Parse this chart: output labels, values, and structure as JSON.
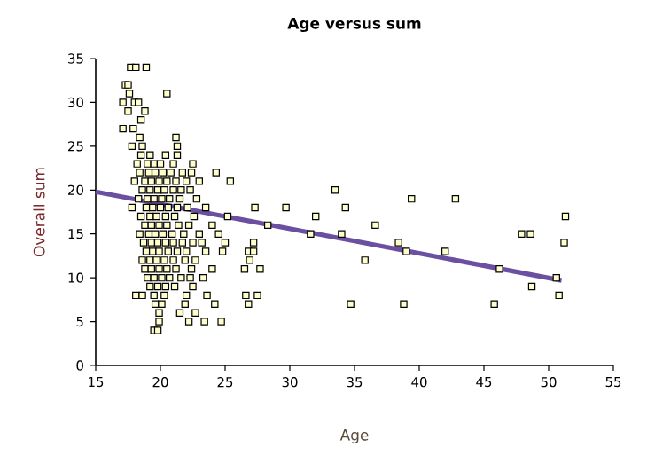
{
  "chart_data": {
    "type": "scatter",
    "title": "Age versus sum",
    "xlabel": "Age",
    "ylabel": "Overall sum",
    "xlim": [
      15,
      55
    ],
    "ylim": [
      0,
      35
    ],
    "xticks": [
      15,
      20,
      25,
      30,
      35,
      40,
      45,
      50,
      55
    ],
    "yticks": [
      0,
      5,
      10,
      15,
      20,
      25,
      30,
      35
    ],
    "marker": "square",
    "series": [
      {
        "type": "scatter",
        "color": "#ffffcc",
        "x": [
          17.7,
          18.1,
          18.9,
          17.3,
          17.5,
          17.6,
          20.5,
          17.1,
          18.0,
          18.3,
          17.5,
          18.8,
          18.5,
          17.1,
          17.9,
          18.4,
          21.2,
          17.8,
          18.6,
          21.3,
          18.5,
          19.2,
          20.4,
          21.3,
          18.2,
          19.0,
          19.5,
          20.0,
          21.0,
          22.5,
          18.4,
          19.1,
          19.6,
          20.2,
          20.8,
          21.7,
          22.4,
          24.3,
          18.0,
          18.8,
          19.3,
          19.9,
          20.5,
          21.2,
          22.0,
          23.0,
          25.4,
          18.6,
          19.2,
          19.8,
          20.3,
          21.0,
          21.6,
          22.3,
          18.3,
          19.0,
          19.5,
          20.1,
          20.7,
          21.5,
          22.8,
          17.8,
          18.9,
          19.4,
          20.0,
          20.6,
          21.3,
          22.1,
          23.5,
          18.5,
          19.2,
          19.7,
          20.4,
          21.1,
          22.6,
          25.2,
          18.8,
          19.3,
          19.9,
          20.5,
          21.4,
          22.2,
          24.0,
          18.4,
          19.1,
          19.6,
          20.2,
          20.9,
          21.8,
          23.0,
          24.5,
          18.7,
          19.3,
          19.8,
          20.4,
          21.0,
          21.7,
          22.5,
          23.2,
          25.0,
          18.9,
          19.4,
          19.9,
          20.6,
          21.3,
          22.0,
          23.5,
          24.8,
          18.6,
          19.2,
          19.7,
          20.3,
          21.0,
          21.9,
          22.7,
          18.8,
          19.3,
          19.9,
          20.5,
          21.2,
          22.4,
          24.0,
          19.0,
          19.5,
          20.1,
          20.7,
          21.6,
          22.3,
          23.3,
          19.2,
          19.8,
          20.4,
          21.1,
          22.5,
          18.1,
          18.6,
          19.5,
          20.3,
          22.0,
          23.6,
          19.6,
          20.1,
          21.9,
          24.2,
          19.9,
          21.5,
          22.7,
          19.9,
          22.2,
          23.4,
          24.7,
          19.5,
          19.8,
          33.5,
          27.3,
          29.7,
          34.3,
          32.0,
          36.6,
          28.3,
          31.6,
          34.0,
          27.2,
          26.8,
          27.2,
          26.9,
          35.8,
          26.5,
          27.7,
          26.6,
          27.5,
          26.8,
          34.7,
          39.4,
          42.8,
          51.3,
          47.9,
          48.6,
          51.2,
          38.4,
          39.0,
          42.0,
          46.2,
          50.6,
          48.7,
          50.8,
          38.8,
          45.8
        ],
        "values": [
          34,
          34,
          34,
          32,
          32,
          31,
          31,
          30,
          30,
          30,
          29,
          29,
          28,
          27,
          27,
          26,
          26,
          25,
          25,
          25,
          24,
          24,
          24,
          24,
          23,
          23,
          23,
          23,
          23,
          23,
          22,
          22,
          22,
          22,
          22,
          22,
          22,
          22,
          21,
          21,
          21,
          21,
          21,
          21,
          21,
          21,
          21,
          20,
          20,
          20,
          20,
          20,
          20,
          20,
          19,
          19,
          19,
          19,
          19,
          19,
          19,
          18,
          18,
          18,
          18,
          18,
          18,
          18,
          18,
          17,
          17,
          17,
          17,
          17,
          17,
          17,
          16,
          16,
          16,
          16,
          16,
          16,
          16,
          15,
          15,
          15,
          15,
          15,
          15,
          15,
          15,
          14,
          14,
          14,
          14,
          14,
          14,
          14,
          14,
          14,
          13,
          13,
          13,
          13,
          13,
          13,
          13,
          13,
          12,
          12,
          12,
          12,
          12,
          12,
          12,
          11,
          11,
          11,
          11,
          11,
          11,
          11,
          10,
          10,
          10,
          10,
          10,
          10,
          10,
          9,
          9,
          9,
          9,
          9,
          8,
          8,
          8,
          8,
          8,
          8,
          7,
          7,
          7,
          7,
          6,
          6,
          6,
          5,
          5,
          5,
          5,
          4,
          4,
          20,
          18,
          18,
          18,
          17,
          16,
          16,
          15,
          15,
          14,
          13,
          13,
          12,
          12,
          11,
          11,
          8,
          8,
          7,
          7,
          19,
          19,
          17,
          15,
          15,
          14,
          14,
          13,
          13,
          11,
          10,
          9,
          8,
          7,
          7
        ]
      },
      {
        "type": "line",
        "color": "#6b4fa0",
        "marker": "none",
        "x": [
          15,
          51
        ],
        "values": [
          19.8,
          9.7
        ]
      }
    ]
  }
}
